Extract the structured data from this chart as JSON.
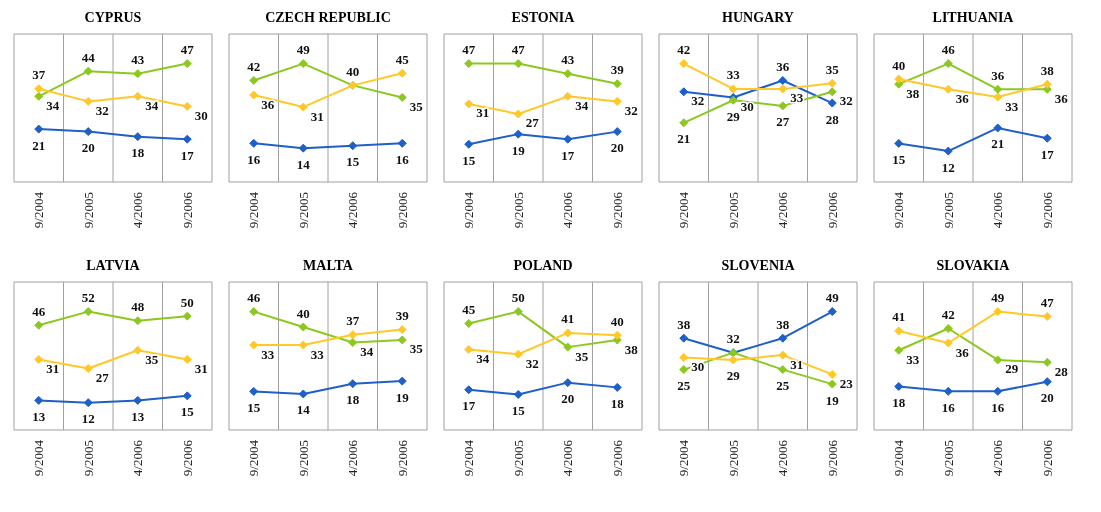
{
  "chart_data": [
    {
      "type": "line",
      "title": "CYPRUS",
      "categories": [
        "9/2004",
        "9/2005",
        "4/2006",
        "9/2006"
      ],
      "marker": "diamond",
      "grid": "x",
      "tick_labels": "x",
      "series": [
        {
          "color": "#1f5fc8",
          "values": [
            21,
            20,
            18,
            17
          ],
          "value_labels": [
            "21",
            "20",
            "18",
            "17"
          ]
        },
        {
          "color": "#8cc820",
          "values": [
            34,
            44,
            43,
            47
          ],
          "value_labels": [
            "34",
            "44",
            "43",
            "47"
          ]
        },
        {
          "color": "#ffc828",
          "values": [
            37,
            32,
            34,
            30
          ],
          "value_labels": [
            "37",
            "32",
            "34",
            "30"
          ]
        }
      ]
    },
    {
      "type": "line",
      "title": "CZECH REPUBLIC",
      "categories": [
        "9/2004",
        "9/2005",
        "4/2006",
        "9/2006"
      ],
      "marker": "diamond",
      "grid": "x",
      "tick_labels": "x",
      "series": [
        {
          "color": "#1f5fc8",
          "values": [
            16,
            14,
            15,
            16
          ],
          "value_labels": [
            "16",
            "14",
            "15",
            "16"
          ]
        },
        {
          "color": "#8cc820",
          "values": [
            42,
            49,
            40,
            35
          ],
          "value_labels": [
            "42",
            "49",
            "40",
            "35"
          ]
        },
        {
          "color": "#ffc828",
          "values": [
            36,
            31,
            40,
            45
          ],
          "value_labels": [
            "36",
            "31",
            null,
            "45"
          ]
        }
      ]
    },
    {
      "type": "line",
      "title": "ESTONIA",
      "categories": [
        "9/2004",
        "9/2005",
        "4/2006",
        "9/2006"
      ],
      "marker": "diamond",
      "grid": "x",
      "tick_labels": "x",
      "series": [
        {
          "color": "#1f5fc8",
          "values": [
            15,
            19,
            17,
            20
          ],
          "value_labels": [
            "15",
            "19",
            "17",
            "20"
          ]
        },
        {
          "color": "#8cc820",
          "values": [
            47,
            47,
            43,
            39
          ],
          "value_labels": [
            "47",
            "47",
            "43",
            "39"
          ]
        },
        {
          "color": "#ffc828",
          "values": [
            31,
            27,
            34,
            32
          ],
          "value_labels": [
            "31",
            "27",
            "34",
            "32"
          ]
        }
      ]
    },
    {
      "type": "line",
      "title": "HUNGARY",
      "categories": [
        "9/2004",
        "9/2005",
        "4/2006",
        "9/2006"
      ],
      "marker": "diamond",
      "grid": "x",
      "tick_labels": "x",
      "series": [
        {
          "color": "#1f5fc8",
          "values": [
            32,
            30,
            36,
            28
          ],
          "value_labels": [
            "32",
            "30",
            "36",
            "28"
          ]
        },
        {
          "color": "#8cc820",
          "values": [
            21,
            29,
            27,
            32
          ],
          "value_labels": [
            "21",
            "29",
            "27",
            "32"
          ]
        },
        {
          "color": "#ffc828",
          "values": [
            42,
            33,
            33,
            35
          ],
          "value_labels": [
            "42",
            "33",
            "33",
            "35"
          ]
        }
      ]
    },
    {
      "type": "line",
      "title": "LITHUANIA",
      "categories": [
        "9/2004",
        "9/2005",
        "4/2006",
        "9/2006"
      ],
      "marker": "diamond",
      "grid": "x",
      "tick_labels": "x",
      "series": [
        {
          "color": "#1f5fc8",
          "values": [
            15,
            12,
            21,
            17
          ],
          "value_labels": [
            "15",
            "12",
            "21",
            "17"
          ]
        },
        {
          "color": "#8cc820",
          "values": [
            38,
            46,
            36,
            36
          ],
          "value_labels": [
            "38",
            "46",
            "36",
            "36"
          ]
        },
        {
          "color": "#ffc828",
          "values": [
            40,
            36,
            33,
            38
          ],
          "value_labels": [
            "40",
            "36",
            "33",
            "38"
          ]
        }
      ]
    },
    {
      "type": "line",
      "title": "LATVIA",
      "categories": [
        "9/2004",
        "9/2005",
        "4/2006",
        "9/2006"
      ],
      "marker": "diamond",
      "grid": "x",
      "tick_labels": "x",
      "series": [
        {
          "color": "#1f5fc8",
          "values": [
            13,
            12,
            13,
            15
          ],
          "value_labels": [
            "13",
            "12",
            "13",
            "15"
          ]
        },
        {
          "color": "#8cc820",
          "values": [
            46,
            52,
            48,
            50
          ],
          "value_labels": [
            "46",
            "52",
            "48",
            "50"
          ]
        },
        {
          "color": "#ffc828",
          "values": [
            31,
            27,
            35,
            31
          ],
          "value_labels": [
            "31",
            "27",
            "35",
            "31"
          ]
        }
      ]
    },
    {
      "type": "line",
      "title": "MALTA",
      "categories": [
        "9/2004",
        "9/2005",
        "4/2006",
        "9/2006"
      ],
      "marker": "diamond",
      "grid": "x",
      "tick_labels": "x",
      "series": [
        {
          "color": "#1f5fc8",
          "values": [
            15,
            14,
            18,
            19
          ],
          "value_labels": [
            "15",
            "14",
            "18",
            "19"
          ]
        },
        {
          "color": "#8cc820",
          "values": [
            46,
            40,
            34,
            35
          ],
          "value_labels": [
            "46",
            "40",
            "34",
            "35"
          ]
        },
        {
          "color": "#ffc828",
          "values": [
            33,
            33,
            37,
            39
          ],
          "value_labels": [
            "33",
            "33",
            "37",
            "39"
          ]
        }
      ]
    },
    {
      "type": "line",
      "title": "POLAND",
      "categories": [
        "9/2004",
        "9/2005",
        "4/2006",
        "9/2006"
      ],
      "marker": "diamond",
      "grid": "x",
      "tick_labels": "x",
      "series": [
        {
          "color": "#1f5fc8",
          "values": [
            17,
            15,
            20,
            18
          ],
          "value_labels": [
            "17",
            "15",
            "20",
            "18"
          ]
        },
        {
          "color": "#8cc820",
          "values": [
            45,
            50,
            35,
            38
          ],
          "value_labels": [
            "45",
            "50",
            "35",
            "38"
          ]
        },
        {
          "color": "#ffc828",
          "values": [
            34,
            32,
            41,
            40
          ],
          "value_labels": [
            "34",
            "32",
            "41",
            "40"
          ]
        }
      ]
    },
    {
      "type": "line",
      "title": "SLOVENIA",
      "categories": [
        "9/2004",
        "9/2005",
        "4/2006",
        "9/2006"
      ],
      "marker": "diamond",
      "grid": "x",
      "tick_labels": "x",
      "series": [
        {
          "color": "#1f5fc8",
          "values": [
            38,
            32,
            38,
            49
          ],
          "value_labels": [
            "38",
            "32",
            "38",
            "49"
          ]
        },
        {
          "color": "#8cc820",
          "values": [
            25,
            32,
            25,
            19
          ],
          "value_labels": [
            "25",
            null,
            "25",
            "19"
          ]
        },
        {
          "color": "#ffc828",
          "values": [
            30,
            29,
            31,
            23
          ],
          "value_labels": [
            "30",
            "29",
            "31",
            "23"
          ]
        }
      ]
    },
    {
      "type": "line",
      "title": "SLOVAKIA",
      "categories": [
        "9/2004",
        "9/2005",
        "4/2006",
        "9/2006"
      ],
      "marker": "diamond",
      "grid": "x",
      "tick_labels": "x",
      "series": [
        {
          "color": "#1f5fc8",
          "values": [
            18,
            16,
            16,
            20
          ],
          "value_labels": [
            "18",
            "16",
            "16",
            "20"
          ]
        },
        {
          "color": "#8cc820",
          "values": [
            33,
            42,
            29,
            28
          ],
          "value_labels": [
            "33",
            "42",
            "29",
            "28"
          ]
        },
        {
          "color": "#ffc828",
          "values": [
            41,
            36,
            49,
            47
          ],
          "value_labels": [
            "41",
            "36",
            "49",
            "47"
          ]
        }
      ]
    }
  ]
}
